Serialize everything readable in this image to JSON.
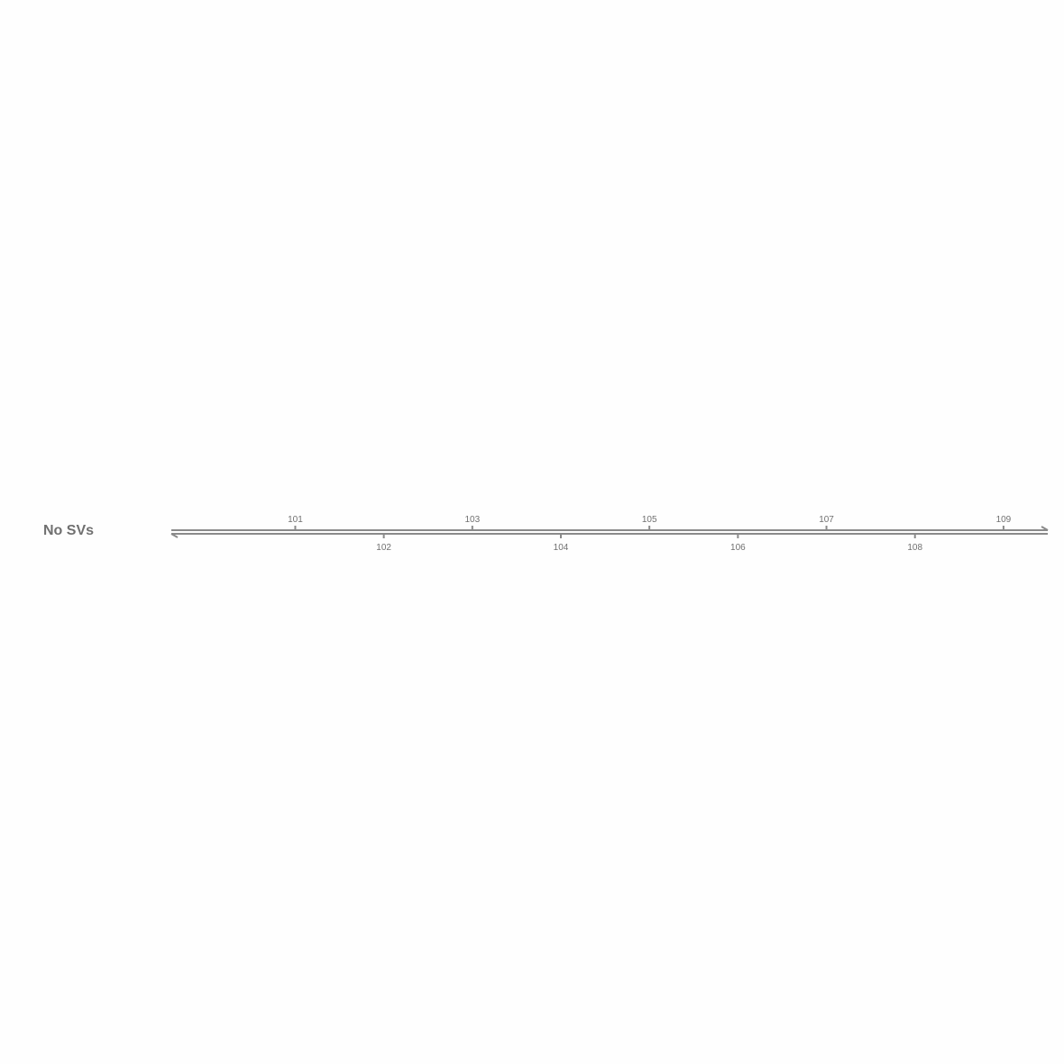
{
  "track": {
    "label": "No SVs"
  },
  "axis": {
    "domain": [
      99.6,
      109.5
    ],
    "ticks_top": [
      "101",
      "103",
      "105",
      "107",
      "109"
    ],
    "ticks_bottom": [
      "102",
      "104",
      "106",
      "108"
    ],
    "strands": [
      "forward",
      "reverse"
    ],
    "color": "#8a8a8a",
    "label_color": "#707070"
  }
}
